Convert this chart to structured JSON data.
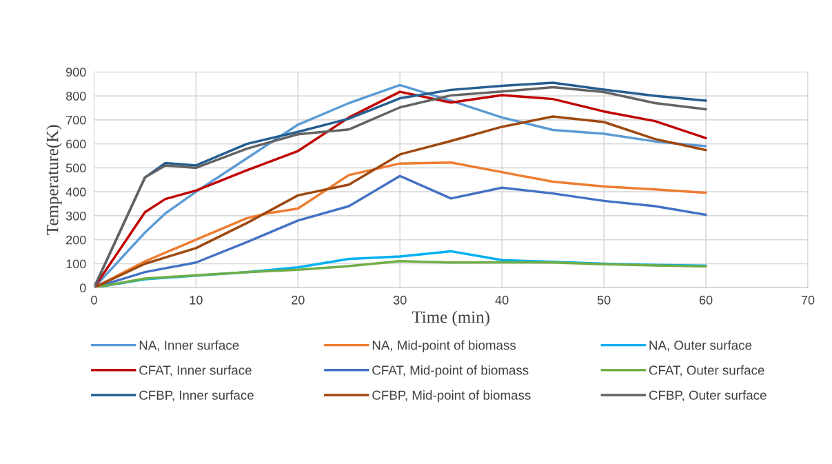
{
  "chart_data": {
    "type": "line",
    "xlabel": "Time (min)",
    "ylabel": "Temperature(K)",
    "xlim": [
      0,
      70
    ],
    "xticks": [
      0,
      10,
      20,
      30,
      40,
      50,
      60,
      70
    ],
    "ylim": [
      0,
      900
    ],
    "yticks": [
      0,
      100,
      200,
      300,
      400,
      500,
      600,
      700,
      800,
      900
    ],
    "grid": true,
    "legend": "bottom",
    "marker": "none",
    "line_style": "solid",
    "series": [
      {
        "name": "NA, Inner surface",
        "color": "#5b9bd5",
        "x": [
          0,
          5,
          7,
          10,
          15,
          20,
          25,
          30,
          35,
          40,
          45,
          50,
          55,
          60
        ],
        "values": [
          0,
          230,
          310,
          400,
          540,
          680,
          770,
          845,
          780,
          710,
          658,
          642,
          610,
          590
        ]
      },
      {
        "name": "NA, Mid-point of biomass",
        "color": "#ed7d31",
        "x": [
          0,
          5,
          10,
          15,
          17,
          20,
          25,
          30,
          35,
          40,
          45,
          50,
          55,
          60
        ],
        "values": [
          0,
          110,
          200,
          290,
          310,
          330,
          470,
          518,
          522,
          482,
          442,
          422,
          410,
          396
        ]
      },
      {
        "name": "NA, Outer surface",
        "color": "#00b0f0",
        "x": [
          0,
          5,
          10,
          15,
          20,
          25,
          30,
          35,
          40,
          45,
          50,
          55,
          60
        ],
        "values": [
          0,
          35,
          50,
          65,
          85,
          120,
          130,
          152,
          115,
          108,
          100,
          95,
          92
        ]
      },
      {
        "name": "CFAT, Inner surface",
        "color": "#c00000",
        "x": [
          0,
          5,
          7,
          10,
          15,
          20,
          25,
          30,
          35,
          40,
          45,
          50,
          55,
          60
        ],
        "values": [
          0,
          315,
          370,
          405,
          490,
          570,
          710,
          817,
          772,
          803,
          787,
          735,
          695,
          624
        ]
      },
      {
        "name": "CFAT, Mid-point of biomass",
        "color": "#4472c4",
        "x": [
          0,
          5,
          10,
          15,
          20,
          25,
          30,
          35,
          40,
          45,
          50,
          55,
          60
        ],
        "values": [
          0,
          65,
          105,
          190,
          280,
          340,
          466,
          372,
          417,
          393,
          362,
          340,
          304
        ]
      },
      {
        "name": "CFAT, Outer surface",
        "color": "#70ad47",
        "x": [
          0,
          5,
          10,
          15,
          20,
          25,
          30,
          35,
          40,
          45,
          50,
          55,
          60
        ],
        "values": [
          0,
          38,
          52,
          65,
          75,
          90,
          111,
          105,
          106,
          105,
          98,
          93,
          89
        ]
      },
      {
        "name": "CFBP, Inner surface",
        "color": "#255e91",
        "x": [
          0,
          5,
          7,
          10,
          15,
          20,
          25,
          30,
          35,
          40,
          45,
          50,
          55,
          60
        ],
        "values": [
          0,
          460,
          520,
          510,
          600,
          650,
          705,
          790,
          825,
          842,
          855,
          826,
          800,
          780
        ]
      },
      {
        "name": "CFBP, Mid-point of biomass",
        "color": "#9e480e",
        "x": [
          0,
          5,
          10,
          15,
          20,
          25,
          30,
          35,
          40,
          45,
          50,
          55,
          60
        ],
        "values": [
          0,
          100,
          165,
          270,
          385,
          430,
          556,
          612,
          671,
          714,
          691,
          620,
          574
        ]
      },
      {
        "name": "CFBP, Outer surface",
        "color": "#636363",
        "x": [
          0,
          5,
          7,
          10,
          15,
          20,
          25,
          30,
          35,
          40,
          45,
          50,
          55,
          60
        ],
        "values": [
          0,
          460,
          510,
          500,
          580,
          640,
          660,
          752,
          802,
          818,
          836,
          816,
          770,
          744
        ]
      }
    ]
  }
}
